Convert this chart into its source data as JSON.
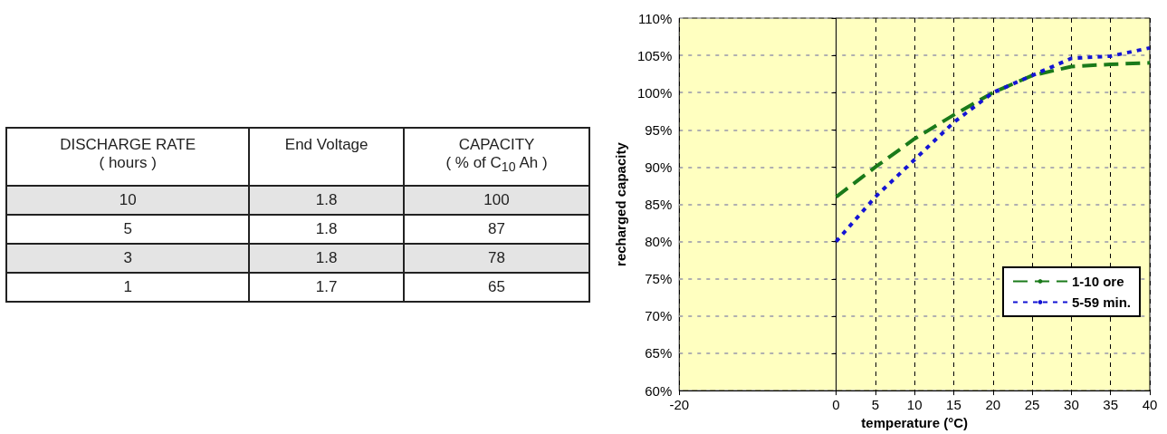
{
  "chart_data": [
    {
      "type": "other",
      "xlabel": "DISCHARGE RATE ( hours )",
      "categories": [
        "10",
        "5",
        "3",
        "1"
      ],
      "data_labels": true,
      "series": [
        {
          "name": "End Voltage",
          "values": [
            1.8,
            1.8,
            1.8,
            1.7
          ]
        },
        {
          "name": "CAPACITY ( % of C$_{10}$ Ah )",
          "values": [
            100,
            87,
            78,
            65
          ]
        }
      ]
    },
    {
      "type": "line",
      "xlabel": "temperature (°C)",
      "ylabel": "recharged capacity",
      "x": [
        0,
        5,
        10,
        15,
        20,
        25,
        30,
        35,
        40
      ],
      "xlim": [
        -20,
        40
      ],
      "xticks": [
        -20,
        0,
        5,
        10,
        15,
        20,
        25,
        30,
        35,
        40
      ],
      "ylim": [
        60,
        110
      ],
      "yticks": [
        {
          "value": 60,
          "label": "60%"
        },
        {
          "value": 65,
          "label": "65%"
        },
        {
          "value": 70,
          "label": "70%"
        },
        {
          "value": 75,
          "label": "75%"
        },
        {
          "value": 80,
          "label": "80%"
        },
        {
          "value": 85,
          "label": "85%"
        },
        {
          "value": 90,
          "label": "90%"
        },
        {
          "value": 95,
          "label": "95%"
        },
        {
          "value": 100,
          "label": "100%"
        },
        {
          "value": 105,
          "label": "105%"
        },
        {
          "value": 110,
          "label": "110%"
        }
      ],
      "grid": true,
      "legend": "bottom right",
      "marker": "none",
      "series": [
        {
          "name": "1-10 ore",
          "color": "#1a7a1a",
          "line_style": "dashed",
          "values": [
            86,
            90,
            93.8,
            97,
            100,
            102.3,
            103.5,
            103.8,
            104
          ]
        },
        {
          "name": "5-59 min.",
          "color": "#1414d4",
          "line_style": "dotted",
          "values": [
            80,
            86,
            91,
            96,
            100,
            102.3,
            104.6,
            104.9,
            106
          ]
        }
      ]
    }
  ]
}
